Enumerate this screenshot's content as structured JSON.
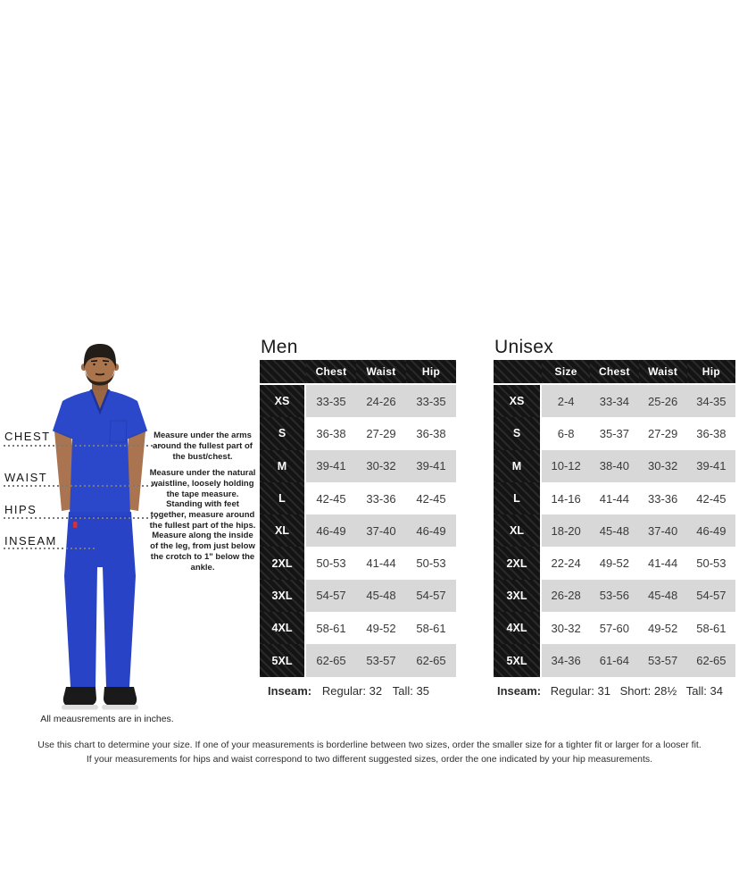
{
  "diagram": {
    "labels": [
      {
        "label": "CHEST",
        "description": "Measure under the arms around the fullest part of the bust/chest."
      },
      {
        "label": "WAIST",
        "description": "Measure under the natural waistline, loosely holding the tape measure."
      },
      {
        "label": "HIPS",
        "description": "Standing with feet together, measure around the fullest part of the hips."
      },
      {
        "label": "INSEAM",
        "description": "Measure along the inside of the leg, from just below the crotch to 1\" below the ankle."
      }
    ],
    "footnote": "All meausrements are in inches."
  },
  "men_table": {
    "title": "Men",
    "columns": [
      "Chest",
      "Waist",
      "Hip"
    ],
    "rows": [
      {
        "size": "XS",
        "values": [
          "33-35",
          "24-26",
          "33-35"
        ]
      },
      {
        "size": "S",
        "values": [
          "36-38",
          "27-29",
          "36-38"
        ]
      },
      {
        "size": "M",
        "values": [
          "39-41",
          "30-32",
          "39-41"
        ]
      },
      {
        "size": "L",
        "values": [
          "42-45",
          "33-36",
          "42-45"
        ]
      },
      {
        "size": "XL",
        "values": [
          "46-49",
          "37-40",
          "46-49"
        ]
      },
      {
        "size": "2XL",
        "values": [
          "50-53",
          "41-44",
          "50-53"
        ]
      },
      {
        "size": "3XL",
        "values": [
          "54-57",
          "45-48",
          "54-57"
        ]
      },
      {
        "size": "4XL",
        "values": [
          "58-61",
          "49-52",
          "58-61"
        ]
      },
      {
        "size": "5XL",
        "values": [
          "62-65",
          "53-57",
          "62-65"
        ]
      }
    ],
    "inseam_label": "Inseam:",
    "inseam_options": [
      "Regular: 32",
      "Tall: 35"
    ]
  },
  "unisex_table": {
    "title": "Unisex",
    "columns": [
      "Size",
      "Chest",
      "Waist",
      "Hip"
    ],
    "rows": [
      {
        "size": "XS",
        "values": [
          "2-4",
          "33-34",
          "25-26",
          "34-35"
        ]
      },
      {
        "size": "S",
        "values": [
          "6-8",
          "35-37",
          "27-29",
          "36-38"
        ]
      },
      {
        "size": "M",
        "values": [
          "10-12",
          "38-40",
          "30-32",
          "39-41"
        ]
      },
      {
        "size": "L",
        "values": [
          "14-16",
          "41-44",
          "33-36",
          "42-45"
        ]
      },
      {
        "size": "XL",
        "values": [
          "18-20",
          "45-48",
          "37-40",
          "46-49"
        ]
      },
      {
        "size": "2XL",
        "values": [
          "22-24",
          "49-52",
          "41-44",
          "50-53"
        ]
      },
      {
        "size": "3XL",
        "values": [
          "26-28",
          "53-56",
          "45-48",
          "54-57"
        ]
      },
      {
        "size": "4XL",
        "values": [
          "30-32",
          "57-60",
          "49-52",
          "58-61"
        ]
      },
      {
        "size": "5XL",
        "values": [
          "34-36",
          "61-64",
          "53-57",
          "62-65"
        ]
      }
    ],
    "inseam_label": "Inseam:",
    "inseam_options": [
      "Regular: 31",
      "Short: 28½",
      "Tall: 34"
    ]
  },
  "footer": {
    "line1": "Use this chart to determine your size. If one of your measurements is borderline between two sizes, order the smaller size for a tighter fit or larger for a looser fit.",
    "line2": "If your measurements for hips and waist correspond to two different suggested sizes, order the one indicated by your hip measurements."
  },
  "colors": {
    "scrub_blue": "#2b48cb",
    "table_header_black": "#141414",
    "row_shade_gray": "#d8d8d8",
    "text_dark": "#3a3a3a"
  }
}
